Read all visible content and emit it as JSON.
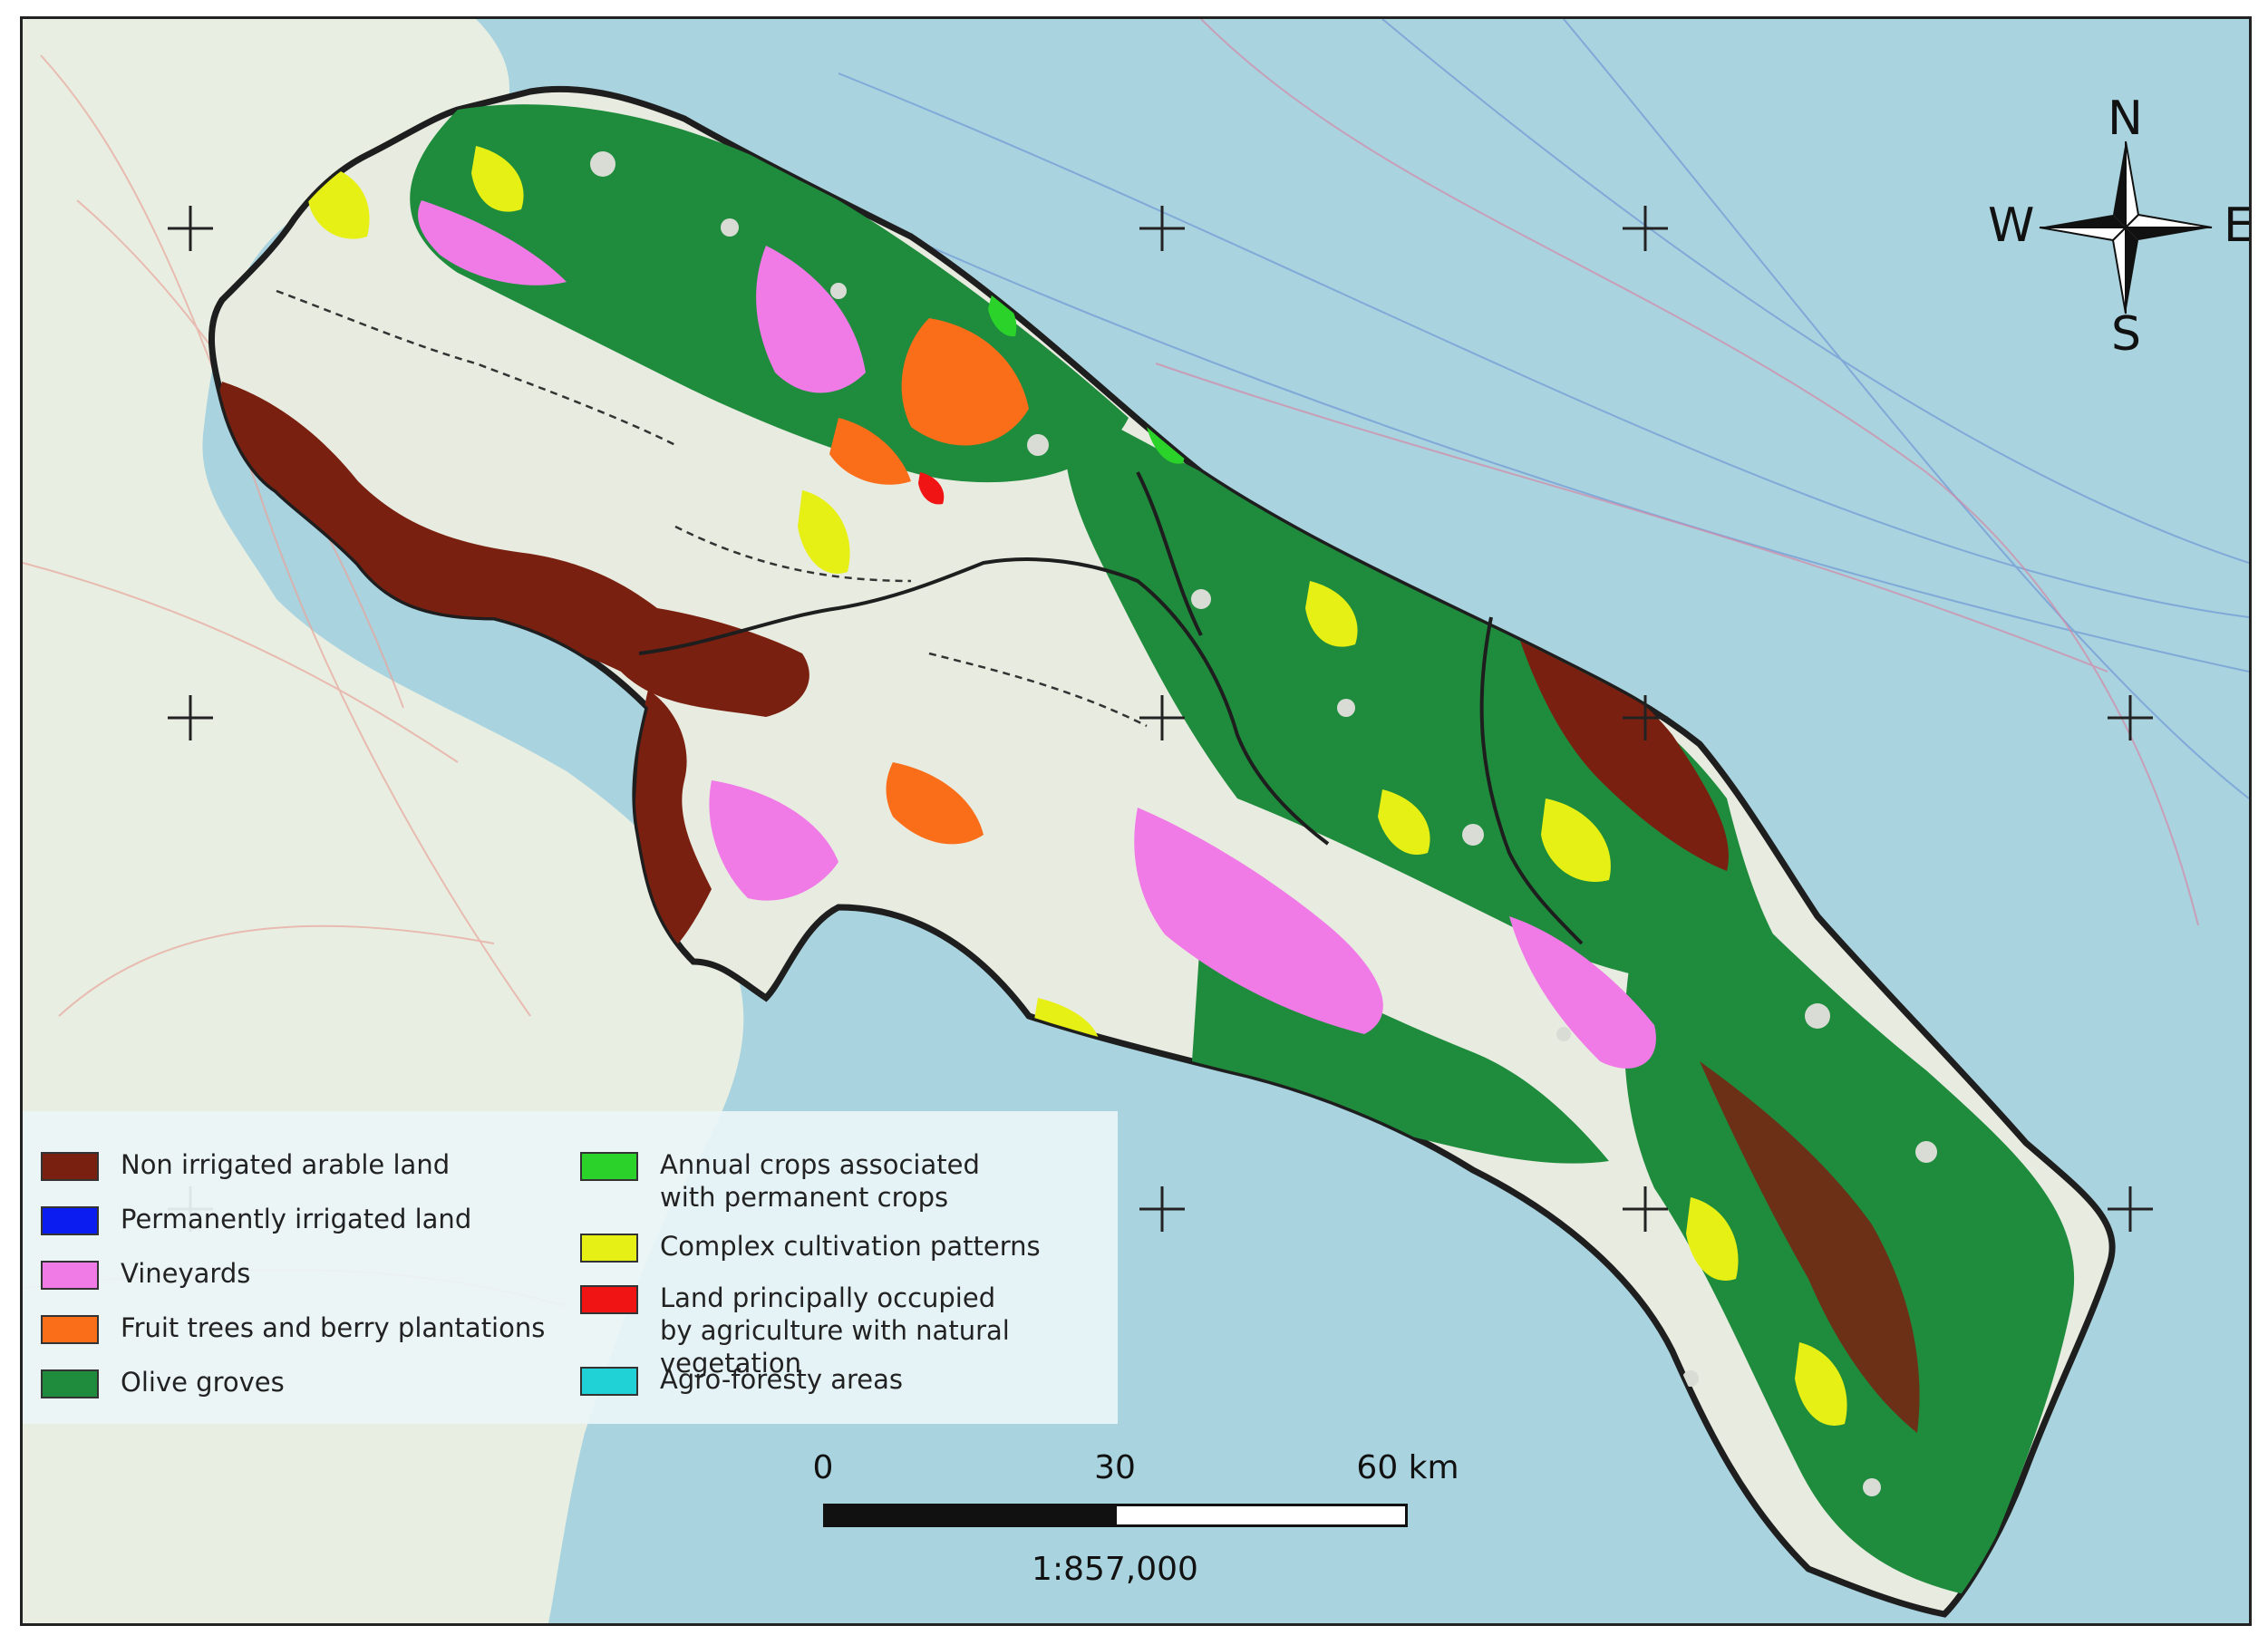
{
  "colors": {
    "sea": "#a9d3df",
    "land_bg": "#e8efe2",
    "border": "#1e1e1e"
  },
  "legend": {
    "items": [
      {
        "label": "Non irrigated arable land",
        "color": "#7a2010"
      },
      {
        "label": "Permanently irrigated land",
        "color": "#0a1cf0"
      },
      {
        "label": "Vineyards",
        "color": "#f07ae6"
      },
      {
        "label": "Fruit trees and berry plantations",
        "color": "#fa6e1a"
      },
      {
        "label": "Olive groves",
        "color": "#1e8c3c"
      },
      {
        "label": "Annual crops associated\nwith permanent crops",
        "color": "#2ad22a"
      },
      {
        "label": "Complex cultivation patterns",
        "color": "#e6f014"
      },
      {
        "label": "Land principally occupied\nby agriculture with natural vegetation",
        "color": "#f01414"
      },
      {
        "label": "Agro-foresty areas",
        "color": "#20d2d6"
      }
    ]
  },
  "compass": {
    "north": "N",
    "south": "S",
    "east": "E",
    "west": "W"
  },
  "scale": {
    "tick_0": "0",
    "tick_30": "30",
    "tick_60": "60 km",
    "ratio": "1:857,000"
  }
}
